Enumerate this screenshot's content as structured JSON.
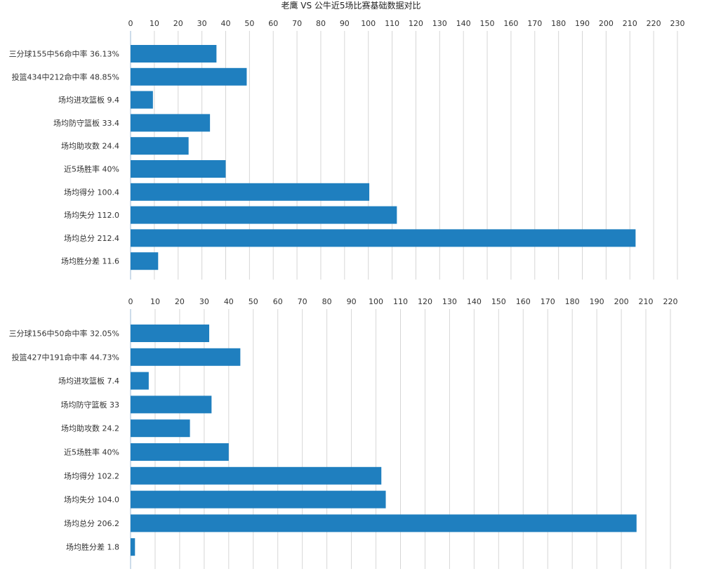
{
  "title": "老鹰 VS 公牛近5场比赛基础数据对比",
  "colors": {
    "bar": "#1f7fbf",
    "grid": "#d6d6d6",
    "axis": "#9bbad4"
  },
  "chart_data": [
    {
      "type": "bar",
      "orientation": "horizontal",
      "categories": [
        "三分球155中56命中率 36.13%",
        "投篮434中212命中率 48.85%",
        "场均进攻篮板 9.4",
        "场均防守篮板 33.4",
        "场均助攻数 24.4",
        "近5场胜率 40%",
        "场均得分 100.4",
        "场均失分 112.0",
        "场均总分 212.4",
        "场均胜分差 11.6"
      ],
      "values": [
        36.13,
        48.85,
        9.4,
        33.4,
        24.4,
        40,
        100.4,
        112.0,
        212.4,
        11.6
      ],
      "xticks": [
        0,
        10,
        20,
        30,
        40,
        50,
        60,
        70,
        80,
        90,
        100,
        110,
        120,
        130,
        140,
        150,
        160,
        170,
        180,
        190,
        200,
        210,
        220,
        230
      ],
      "xlim": [
        0,
        230
      ],
      "grid": true
    },
    {
      "type": "bar",
      "orientation": "horizontal",
      "categories": [
        "三分球156中50命中率 32.05%",
        "投篮427中191命中率 44.73%",
        "场均进攻篮板 7.4",
        "场均防守篮板 33",
        "场均助攻数 24.2",
        "近5场胜率 40%",
        "场均得分 102.2",
        "场均失分 104.0",
        "场均总分 206.2",
        "场均胜分差 1.8"
      ],
      "values": [
        32.05,
        44.73,
        7.4,
        33,
        24.2,
        40,
        102.2,
        104.0,
        206.2,
        1.8
      ],
      "xticks": [
        0,
        10,
        20,
        30,
        40,
        50,
        60,
        70,
        80,
        90,
        100,
        110,
        120,
        130,
        140,
        150,
        160,
        170,
        180,
        190,
        200,
        210,
        220
      ],
      "xlim": [
        0,
        220
      ],
      "grid": true
    }
  ]
}
